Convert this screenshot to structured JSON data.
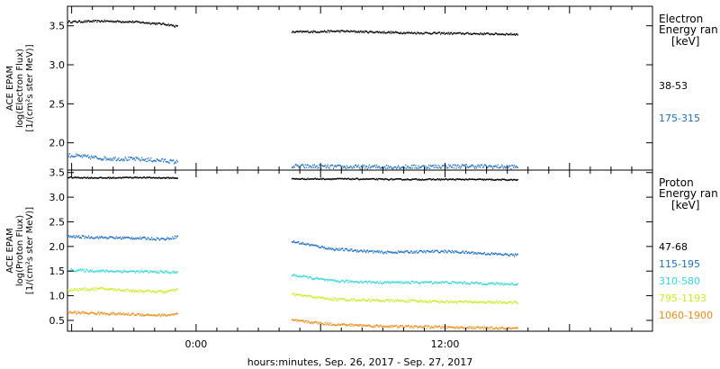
{
  "figure": {
    "xlabel": "hours:minutes, Sep. 26, 2017 - Sep. 27, 2017",
    "x_ticks": [
      {
        "hour": 0,
        "label": "0:00"
      },
      {
        "hour": 12,
        "label": "12:00"
      }
    ],
    "x_range_hours": [
      -6.2,
      22
    ],
    "minor_tick_step_hours": 1,
    "grid": false
  },
  "chart_data": [
    {
      "type": "scatter",
      "panel": "electron",
      "ylabel_lines": [
        "ACE EPAM",
        "log(Electron Flux)",
        "[1/(cm²s ster MeV)]"
      ],
      "ylim": [
        1.65,
        3.75
      ],
      "y_ticks": [
        2.0,
        2.5,
        3.0,
        3.5
      ],
      "y_tick_labels": [
        "2.0",
        "2.5",
        "3.0",
        "3.5"
      ],
      "legend_title": [
        "Electron",
        "Energy ran",
        "[keV]"
      ],
      "x_segments_hours": [
        [
          -6.2,
          -0.9
        ],
        [
          4.6,
          15.5
        ]
      ],
      "series": [
        {
          "name": "38-53",
          "color": "#000000",
          "hours": [
            -6.2,
            -4.5,
            -3,
            -1.5,
            -0.9,
            4.6,
            7,
            10,
            13,
            15.5
          ],
          "values": [
            3.55,
            3.56,
            3.55,
            3.52,
            3.49,
            3.42,
            3.43,
            3.41,
            3.4,
            3.39
          ]
        },
        {
          "name": "175-315",
          "color": "#1a6fcc",
          "hours": [
            -6.2,
            -4.5,
            -3,
            -1.5,
            -0.9,
            4.6,
            7,
            10,
            13,
            15.5
          ],
          "values": [
            1.84,
            1.8,
            1.79,
            1.77,
            1.75,
            1.7,
            1.69,
            1.69,
            1.7,
            1.69
          ]
        }
      ]
    },
    {
      "type": "scatter",
      "panel": "proton",
      "ylabel_lines": [
        "ACE EPAM",
        "log(Proton Flux)",
        "[1/(cm²s ster MeV)]"
      ],
      "ylim": [
        0.28,
        3.55
      ],
      "y_ticks": [
        0.5,
        1.0,
        1.5,
        2.0,
        2.5,
        3.0,
        3.5
      ],
      "y_tick_labels": [
        "0.5",
        "1.0",
        "1.5",
        "2.0",
        "2.5",
        "3.0",
        "3.5"
      ],
      "legend_title": [
        "Proton",
        "Energy ran",
        "[keV]"
      ],
      "x_segments_hours": [
        [
          -6.2,
          -0.9
        ],
        [
          4.6,
          15.5
        ]
      ],
      "series": [
        {
          "name": "47-68",
          "color": "#000000",
          "hours": [
            -6.2,
            -4.5,
            -3,
            -1.5,
            -0.9,
            4.6,
            7,
            10,
            13,
            15.5
          ],
          "values": [
            3.4,
            3.39,
            3.4,
            3.39,
            3.39,
            3.37,
            3.37,
            3.36,
            3.36,
            3.35
          ]
        },
        {
          "name": "115-195",
          "color": "#1a6fcc",
          "hours": [
            -6.2,
            -4.5,
            -3,
            -1.5,
            -0.9,
            4.6,
            6.5,
            9,
            12,
            15.5
          ],
          "values": [
            2.2,
            2.18,
            2.17,
            2.15,
            2.2,
            2.1,
            1.95,
            1.88,
            1.9,
            1.82
          ]
        },
        {
          "name": "310-580",
          "color": "#30d8d8",
          "hours": [
            -6.2,
            -4.5,
            -3,
            -1.5,
            -0.9,
            4.6,
            6.5,
            9,
            12,
            15.5
          ],
          "values": [
            1.52,
            1.5,
            1.49,
            1.48,
            1.47,
            1.42,
            1.3,
            1.27,
            1.27,
            1.23
          ]
        },
        {
          "name": "795-1193",
          "color": "#c8ec20",
          "hours": [
            -6.2,
            -4.5,
            -3,
            -1.5,
            -0.9,
            4.6,
            6.5,
            9,
            12,
            15.5
          ],
          "values": [
            1.12,
            1.14,
            1.1,
            1.08,
            1.12,
            1.03,
            0.93,
            0.9,
            0.88,
            0.86
          ]
        },
        {
          "name": "1060-1900",
          "color": "#f08a10",
          "hours": [
            -6.2,
            -4.5,
            -3,
            -1.5,
            -0.9,
            4.6,
            6.5,
            9,
            12,
            15.5
          ],
          "values": [
            0.66,
            0.64,
            0.62,
            0.6,
            0.63,
            0.5,
            0.42,
            0.38,
            0.36,
            0.33
          ]
        }
      ]
    }
  ]
}
